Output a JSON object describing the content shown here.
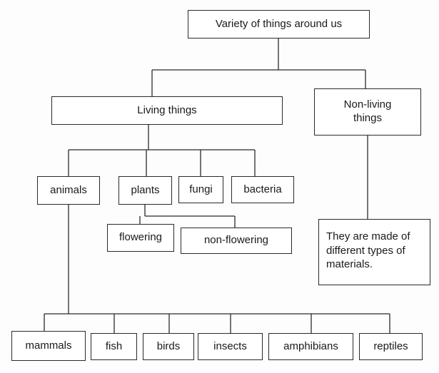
{
  "diagram": {
    "root": "Variety of things around us",
    "living": "Living things",
    "non_living": "Non-living\nthings",
    "non_living_note": "They are made of\ndifferent types of\nmaterials.",
    "living_groups": {
      "animals": "animals",
      "plants": "plants",
      "fungi": "fungi",
      "bacteria": "bacteria"
    },
    "plant_types": {
      "flowering": "flowering",
      "non_flowering": "non-flowering"
    },
    "animal_types": {
      "mammals": "mammals",
      "fish": "fish",
      "birds": "birds",
      "insects": "insects",
      "amphibians": "amphibians",
      "reptiles": "reptiles"
    }
  }
}
